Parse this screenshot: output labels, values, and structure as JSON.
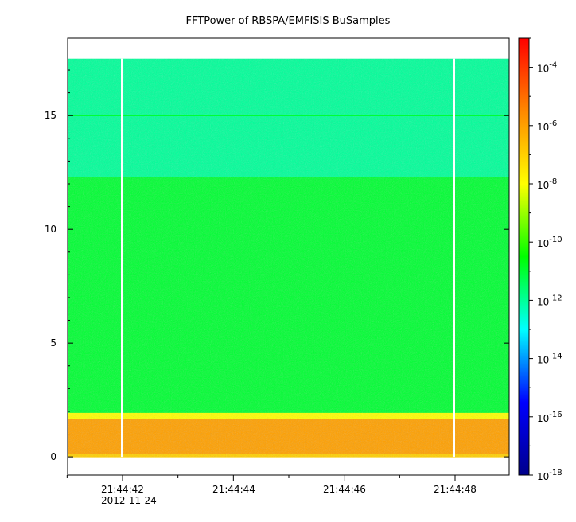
{
  "chart_data": {
    "type": "heatmap",
    "title": "FFTPower of RBSPA/EMFISIS  BuSamples",
    "xlabel": "",
    "ylabel": "",
    "x_tick_labels": [
      "21:44:42",
      "21:44:44",
      "21:44:46",
      "21:44:48"
    ],
    "x_date_label": "2012-11-24",
    "y_ticks": [
      0,
      5,
      10,
      15
    ],
    "ylim": [
      -0.8,
      18.4
    ],
    "data_bands": [
      {
        "y_from": 0.0,
        "y_to": 0.15,
        "level": "1e-7"
      },
      {
        "y_from": 0.15,
        "y_to": 1.7,
        "level": "1e-6"
      },
      {
        "y_from": 1.7,
        "y_to": 1.95,
        "level": "1e-8"
      },
      {
        "y_from": 1.95,
        "y_to": 12.3,
        "level": "1e-11"
      },
      {
        "y_from": 12.3,
        "y_to": 17.5,
        "level": "1e-12"
      }
    ],
    "line_feature": {
      "y": 15.0,
      "level": "1e-11"
    },
    "gaps_x_labels": [
      "~21:44:42",
      "~21:44:48"
    ],
    "colorbar": {
      "scale": "log",
      "range": [
        1e-18,
        0.001
      ],
      "tick_exponents": [
        -4,
        -6,
        -8,
        -10,
        -12,
        -14,
        -16,
        -18
      ],
      "tick_base": "10",
      "colors": [
        "#00008b",
        "#0000ff",
        "#00ffff",
        "#00ff00",
        "#ffff00",
        "#ff8800",
        "#ff0000"
      ]
    }
  }
}
